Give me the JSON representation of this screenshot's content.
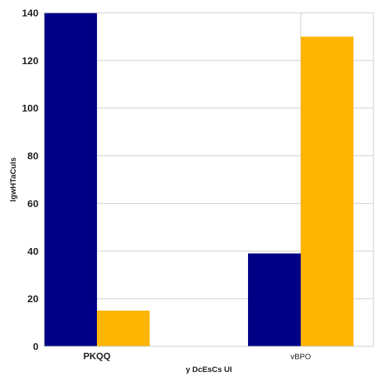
{
  "chart_data": {
    "type": "bar",
    "categories": [
      "PKQQ",
      "vBPO"
    ],
    "category_label_bold": [
      true,
      false
    ],
    "series": [
      {
        "values": [
          140,
          39
        ],
        "color": "#000086"
      },
      {
        "values": [
          15,
          130
        ],
        "color": "#FFB400"
      }
    ],
    "xlabel": "y DcEsCs UI",
    "ylabel": "lgwHTaCuIs",
    "ylim": [
      0,
      140
    ],
    "yticks": [
      0,
      20,
      40,
      60,
      80,
      100,
      120,
      140
    ],
    "grid": true
  },
  "colors": {
    "grid": "#cccccc",
    "frame": "#cccccc",
    "background": "#ffffff"
  }
}
